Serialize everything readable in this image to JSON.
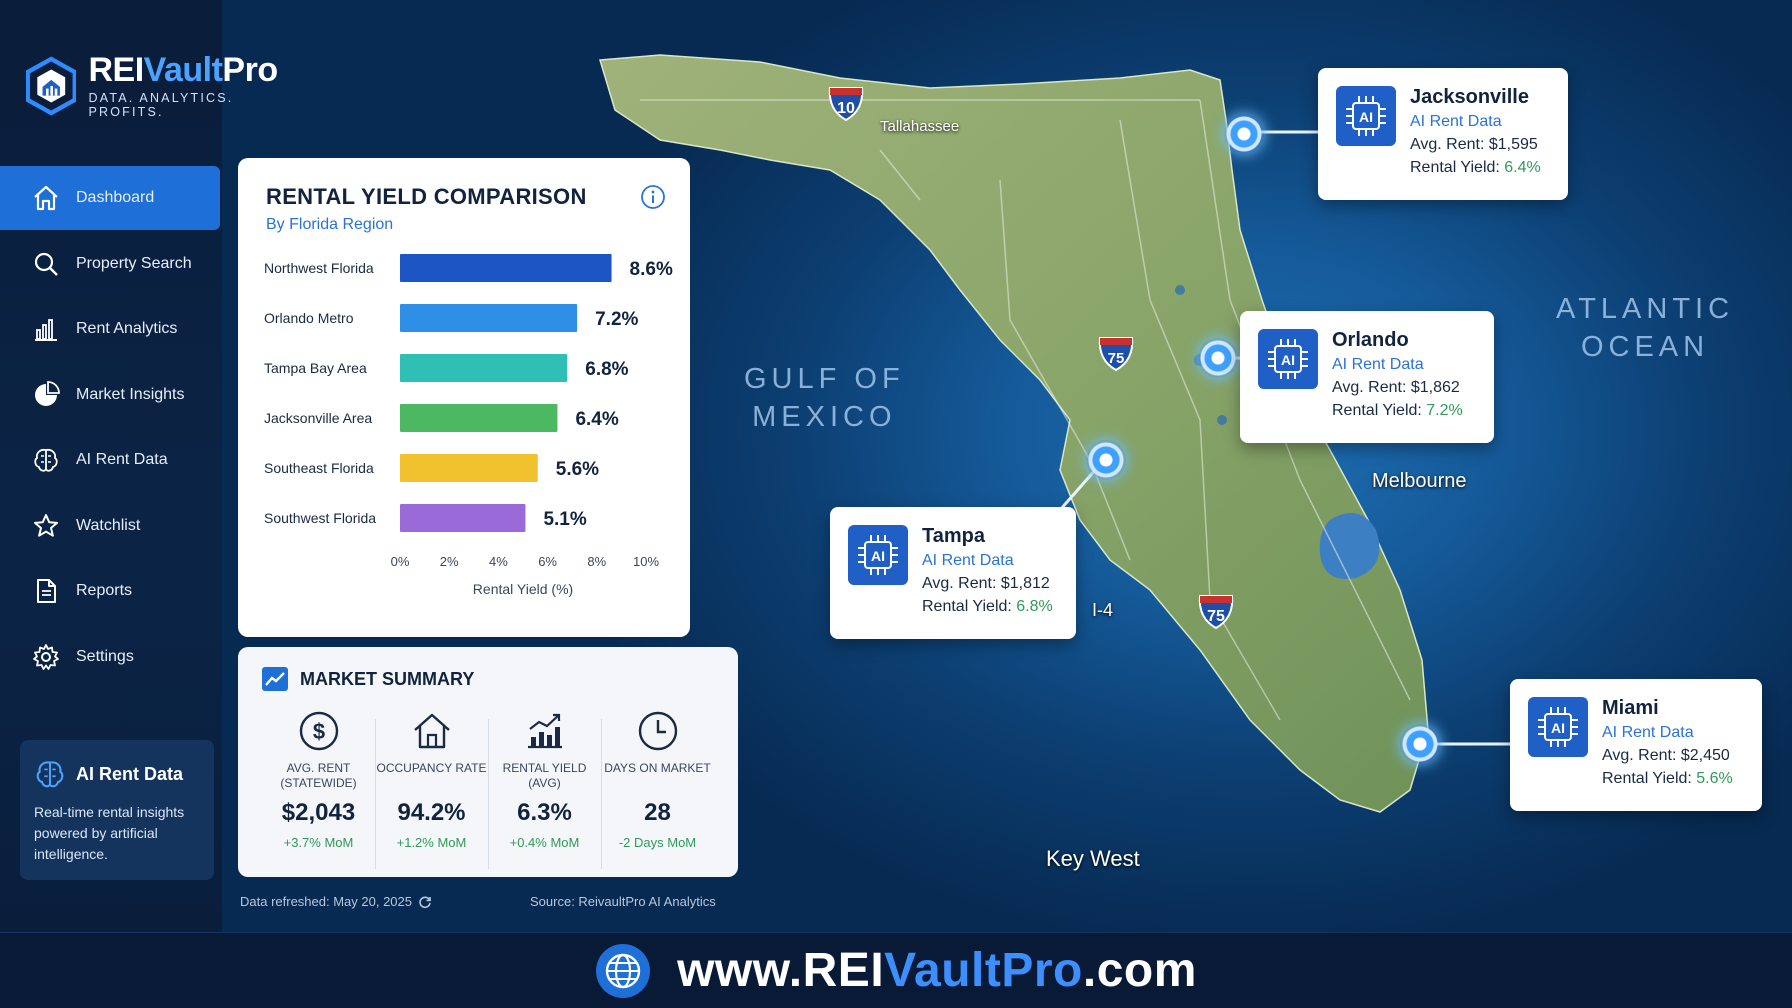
{
  "brand": {
    "name_part1": "REI",
    "name_part2": "Vault",
    "name_part3": "Pro",
    "tagline": "DATA. ANALYTICS. PROFITS."
  },
  "sidebar": {
    "items": [
      {
        "label": "Dashboard",
        "icon": "home-icon",
        "active": true
      },
      {
        "label": "Property Search",
        "icon": "search-icon",
        "active": false
      },
      {
        "label": "Rent Analytics",
        "icon": "bar-chart-icon",
        "active": false
      },
      {
        "label": "Market Insights",
        "icon": "pie-chart-icon",
        "active": false
      },
      {
        "label": "AI Rent Data",
        "icon": "brain-icon",
        "active": false
      },
      {
        "label": "Watchlist",
        "icon": "star-icon",
        "active": false
      },
      {
        "label": "Reports",
        "icon": "document-icon",
        "active": false
      },
      {
        "label": "Settings",
        "icon": "gear-icon",
        "active": false
      }
    ],
    "ai_card": {
      "title": "AI Rent Data",
      "text": "Real-time rental insights powered by artificial intelligence."
    }
  },
  "yield_panel": {
    "title": "RENTAL YIELD COMPARISON",
    "subtitle": "By Florida Region"
  },
  "chart_data": {
    "type": "bar",
    "orientation": "horizontal",
    "categories": [
      "Northwest Florida",
      "Orlando Metro",
      "Tampa Bay Area",
      "Jacksonville Area",
      "Southeast Florida",
      "Southwest Florida"
    ],
    "values": [
      8.6,
      7.2,
      6.8,
      6.4,
      5.6,
      5.1
    ],
    "value_labels": [
      "8.6%",
      "7.2%",
      "6.8%",
      "6.4%",
      "5.6%",
      "5.1%"
    ],
    "colors": [
      "#1d55c4",
      "#2f8ee6",
      "#2fbfb4",
      "#4cb862",
      "#f2c12e",
      "#9a6bd8"
    ],
    "xlabel": "Rental Yield (%)",
    "xlim": [
      0,
      10
    ],
    "ticks": [
      "0%",
      "2%",
      "4%",
      "6%",
      "8%",
      "10%"
    ],
    "grid": false
  },
  "summary": {
    "title": "MARKET SUMMARY",
    "metrics": [
      {
        "icon": "dollar-icon",
        "label": "AVG. RENT (STATEWIDE)",
        "value": "$2,043",
        "delta": "+3.7% MoM"
      },
      {
        "icon": "house-icon",
        "label": "OCCUPANCY RATE",
        "value": "94.2%",
        "delta": "+1.2% MoM"
      },
      {
        "icon": "trend-chart-icon",
        "label": "RENTAL YIELD (AVG)",
        "value": "6.3%",
        "delta": "+0.4% MoM"
      },
      {
        "icon": "clock-icon",
        "label": "DAYS ON MARKET",
        "value": "28",
        "delta": "-2 Days MoM"
      }
    ],
    "refreshed": "Data refreshed: May 20, 2025",
    "source": "Source: ReivaultPro AI Analytics"
  },
  "map": {
    "gulf_label": "GULF OF\nMEXICO",
    "atlantic_label": "ATLANTIC\nOCEAN",
    "places": [
      "Key West",
      "Melbourne",
      "Tallahassee",
      "I-4"
    ],
    "highways": [
      "10",
      "75",
      "75"
    ]
  },
  "cities": [
    {
      "name": "Jacksonville",
      "sub": "AI Rent Data",
      "rent_label": "Avg. Rent: ",
      "rent": "$1,595",
      "yield_label": "Rental Yield: ",
      "yield": "6.4%"
    },
    {
      "name": "Orlando",
      "sub": "AI Rent Data",
      "rent_label": "Avg. Rent: ",
      "rent": "$1,862",
      "yield_label": "Rental Yield: ",
      "yield": "7.2%"
    },
    {
      "name": "Tampa",
      "sub": "AI Rent Data",
      "rent_label": "Avg. Rent: ",
      "rent": "$1,812",
      "yield_label": "Rental Yield: ",
      "yield": "6.8%"
    },
    {
      "name": "Miami",
      "sub": "AI Rent Data",
      "rent_label": "Avg. Rent: ",
      "rent": "$2,450",
      "yield_label": "Rental Yield: ",
      "yield": "5.6%"
    }
  ],
  "footer": {
    "url_part1": "www.REI",
    "url_part2": "VaultPro",
    "url_part3": ".com"
  },
  "colors": {
    "accent": "#1e6fd8",
    "positive": "#2f9a5a",
    "link": "#2a73d6"
  }
}
